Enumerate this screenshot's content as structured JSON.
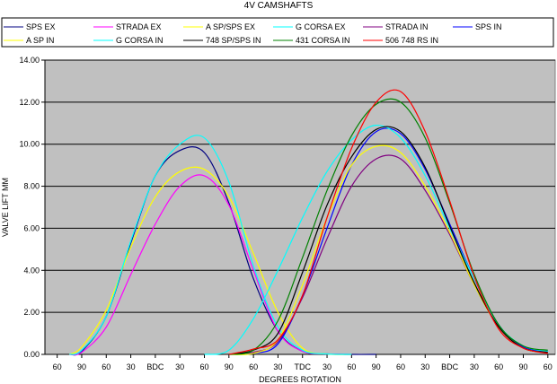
{
  "chart_data": {
    "type": "line",
    "title": "4V CAMSHAFTS",
    "xlabel": "DEGREES ROTATION",
    "ylabel": "VALVE LIFT MM",
    "x_tick_labels": [
      "60",
      "90",
      "60",
      "30",
      "BDC",
      "30",
      "60",
      "90",
      "60",
      "30",
      "TDC",
      "30",
      "60",
      "90",
      "60",
      "30",
      "BDC",
      "30",
      "60",
      "90",
      "60"
    ],
    "y_tick_labels": [
      "0.00",
      "2.00",
      "4.00",
      "6.00",
      "8.00",
      "10.00",
      "12.00",
      "14.00"
    ],
    "ylim": [
      0,
      14
    ],
    "grid": "horizontal",
    "legend_position": "top",
    "series": [
      {
        "name": "SPS EX",
        "color": "#000080",
        "x": [
          0.5,
          1,
          2,
          3,
          4,
          5,
          6,
          7,
          8,
          9,
          10,
          11,
          12,
          13
        ],
        "y": [
          0.0,
          0.15,
          1.8,
          5.3,
          8.5,
          9.7,
          9.6,
          7.2,
          3.6,
          1.1,
          0.15,
          0.02,
          0.0,
          0.0
        ]
      },
      {
        "name": "STRADA EX",
        "color": "#ff00ff",
        "x": [
          0.5,
          1,
          2,
          3,
          4,
          5,
          6,
          7,
          8,
          9,
          10,
          11,
          12
        ],
        "y": [
          0.0,
          0.1,
          1.3,
          3.8,
          6.2,
          8.0,
          8.5,
          7.1,
          4.0,
          1.1,
          0.15,
          0.02,
          0.0
        ]
      },
      {
        "name": "A SP/SPS EX",
        "color": "#ffff00",
        "x": [
          0.5,
          1,
          2,
          3,
          4,
          5,
          6,
          7,
          8,
          9,
          10,
          11,
          12
        ],
        "y": [
          0.0,
          0.35,
          2.1,
          5.1,
          7.5,
          8.7,
          8.8,
          7.5,
          4.8,
          2.0,
          0.3,
          0.02,
          0.0
        ]
      },
      {
        "name": "G CORSA EX",
        "color": "#00ffff",
        "x": [
          0.5,
          1,
          2,
          3,
          4,
          5,
          6,
          7,
          8,
          9,
          10,
          11,
          12
        ],
        "y": [
          0.0,
          0.2,
          1.8,
          5.4,
          8.5,
          10.0,
          10.3,
          8.2,
          4.2,
          1.3,
          0.2,
          0.02,
          0.0
        ]
      },
      {
        "name": "STRADA IN",
        "color": "#800080",
        "x": [
          7,
          8,
          9,
          10,
          11,
          12,
          13,
          14,
          15,
          16,
          17,
          18,
          19,
          20
        ],
        "y": [
          0.0,
          0.1,
          0.6,
          2.7,
          5.5,
          8.0,
          9.3,
          9.3,
          7.8,
          5.7,
          3.3,
          1.3,
          0.3,
          0.1
        ]
      },
      {
        "name": "SPS IN",
        "color": "#0000ff",
        "x": [
          7,
          8,
          9,
          10,
          11,
          12,
          13,
          14,
          15,
          16,
          17,
          18,
          19,
          20
        ],
        "y": [
          0.0,
          0.05,
          0.5,
          2.8,
          6.0,
          9.0,
          10.6,
          10.5,
          8.8,
          6.2,
          3.6,
          1.4,
          0.35,
          0.15
        ]
      },
      {
        "name": "A SP IN",
        "color": "#ffff00",
        "x": [
          7,
          8,
          9,
          10,
          11,
          12,
          13,
          14,
          15,
          16,
          17,
          18,
          19,
          20
        ],
        "y": [
          0.0,
          0.05,
          0.7,
          3.3,
          6.5,
          9.0,
          9.9,
          9.6,
          8.0,
          5.8,
          3.3,
          1.3,
          0.3,
          0.1
        ]
      },
      {
        "name": "G CORSA IN",
        "color": "#00ffff",
        "x": [
          6,
          7,
          8,
          9,
          10,
          11,
          12,
          13,
          14,
          15,
          16,
          17,
          18,
          19,
          20
        ],
        "y": [
          0.0,
          0.2,
          1.7,
          4.0,
          6.5,
          8.7,
          10.2,
          10.9,
          10.3,
          8.5,
          6.0,
          3.6,
          1.4,
          0.4,
          0.15
        ]
      },
      {
        "name": "748 SP/SPS IN",
        "color": "#000000",
        "x": [
          7,
          8,
          9,
          10,
          11,
          12,
          13,
          14,
          15,
          16,
          17,
          18,
          19,
          20
        ],
        "y": [
          0.0,
          0.2,
          1.0,
          3.9,
          7.1,
          9.4,
          10.7,
          10.6,
          8.9,
          6.1,
          3.4,
          1.3,
          0.3,
          0.1
        ]
      },
      {
        "name": "431 CORSA IN",
        "color": "#008000",
        "x": [
          7,
          8,
          9,
          10,
          11,
          12,
          13,
          14,
          15,
          16,
          17,
          18,
          19,
          20
        ],
        "y": [
          0.0,
          0.2,
          1.6,
          4.6,
          7.8,
          10.4,
          11.9,
          12.0,
          10.3,
          7.2,
          3.8,
          1.4,
          0.4,
          0.2
        ]
      },
      {
        "name": "506 748 RS IN",
        "color": "#ff0000",
        "x": [
          7,
          8,
          9,
          10,
          11,
          12,
          13,
          14,
          15,
          16,
          17,
          18,
          19,
          20
        ],
        "y": [
          0.0,
          0.25,
          0.7,
          2.8,
          6.5,
          9.8,
          12.0,
          12.5,
          10.6,
          7.3,
          3.7,
          1.2,
          0.3,
          0.05
        ]
      }
    ]
  }
}
